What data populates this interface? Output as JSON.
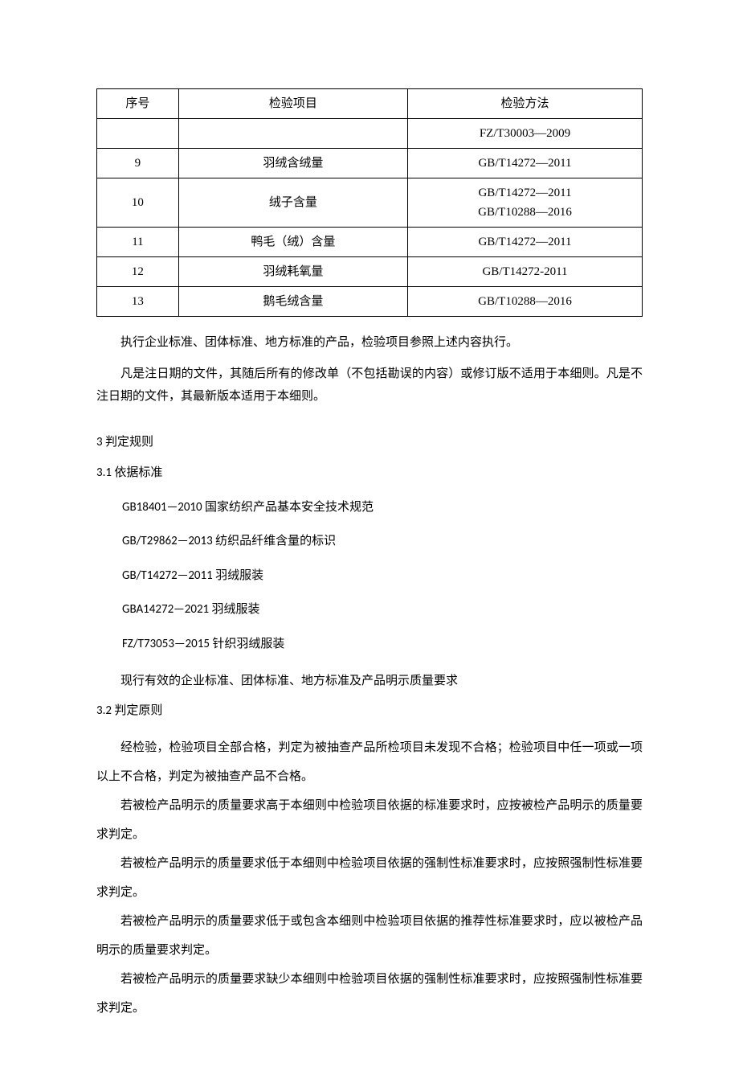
{
  "table": {
    "headers": [
      "序号",
      "检验项目",
      "检验方法"
    ],
    "rows": [
      {
        "seq": "",
        "item": "",
        "method": "FZ/T30003—2009"
      },
      {
        "seq": "9",
        "item": "羽绒含绒量",
        "method": "GB/T14272—2011"
      },
      {
        "seq": "10",
        "item": "绒子含量",
        "method": "GB/T14272—2011\nGB/T10288—2016"
      },
      {
        "seq": "11",
        "item": "鸭毛（绒）含量",
        "method": "GB/T14272—2011"
      },
      {
        "seq": "12",
        "item": "羽绒耗氧量",
        "method": "GB/T14272-2011"
      },
      {
        "seq": "13",
        "item": "鹅毛绒含量",
        "method": "GB/T10288—2016"
      }
    ]
  },
  "intro": {
    "p1": "执行企业标准、团体标准、地方标准的产品，检验项目参照上述内容执行。",
    "p2": "凡是注日期的文件，其随后所有的修改单（不包括勘误的内容）或修订版不适用于本细则。凡是不注日期的文件，其最新版本适用于本细则。"
  },
  "section3": {
    "heading": "3 判定规则",
    "sub31": "3.1 依据标准",
    "standards": [
      "GB18401—2010 国家纺织产品基本安全技术规范",
      "GB/T29862—2013 纺织品纤维含量的标识",
      "GB/T14272—2011 羽绒服装",
      "GBA14272—2021 羽绒服装",
      "FZ/T73053—2015 针织羽绒服装"
    ],
    "std_note": "现行有效的企业标准、团体标准、地方标准及产品明示质量要求",
    "sub32": "3.2 判定原则",
    "body": [
      "经检验，检验项目全部合格，判定为被抽查产品所检项目未发现不合格；检验项目中任一项或一项以上不合格，判定为被抽查产品不合格。",
      "若被检产品明示的质量要求高于本细则中检验项目依据的标准要求时，应按被检产品明示的质量要求判定。",
      "若被检产品明示的质量要求低于本细则中检验项目依据的强制性标准要求时，应按照强制性标准要求判定。",
      "若被检产品明示的质量要求低于或包含本细则中检验项目依据的推荐性标准要求时，应以被检产品明示的质量要求判定。",
      "若被检产品明示的质量要求缺少本细则中检验项目依据的强制性标准要求时，应按照强制性标准要求判定。"
    ]
  }
}
